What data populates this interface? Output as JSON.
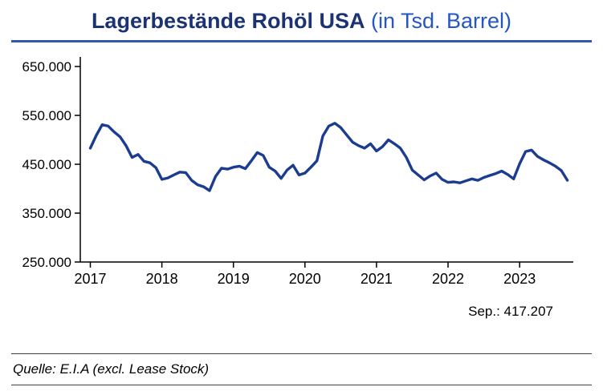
{
  "header": {
    "title_bold": "Lagerbestände Rohöl USA",
    "title_light": " (in Tsd. Barrel)",
    "title_bold_color": "#1B3274",
    "title_light_color": "#2457C5",
    "underline_color": "#2E5AA7"
  },
  "chart_data": {
    "type": "line",
    "title": "Lagerbestände Rohöl USA (in Tsd. Barrel)",
    "xlabel": "",
    "ylabel": "Tsd. Barrel",
    "ylim": [
      250000,
      650000
    ],
    "xlim": [
      2016.86,
      2023.75
    ],
    "grid": false,
    "legend": false,
    "y_ticks": [
      {
        "value": 250000,
        "label": "250.000"
      },
      {
        "value": 350000,
        "label": "350.000"
      },
      {
        "value": 450000,
        "label": "450.000"
      },
      {
        "value": 550000,
        "label": "550.000"
      },
      {
        "value": 650000,
        "label": "650.000"
      }
    ],
    "x_ticks": [
      {
        "value": 2017,
        "label": "2017"
      },
      {
        "value": 2018,
        "label": "2018"
      },
      {
        "value": 2019,
        "label": "2019"
      },
      {
        "value": 2020,
        "label": "2020"
      },
      {
        "value": 2021,
        "label": "2021"
      },
      {
        "value": 2022,
        "label": "2022"
      },
      {
        "value": 2023,
        "label": "2023"
      }
    ],
    "series": [
      {
        "name": "Lagerbestände Rohöl USA",
        "color": "#1B3C8F",
        "frequency": "monthly",
        "x_start_year": 2017,
        "values": [
          483000,
          509000,
          531000,
          528000,
          516000,
          506000,
          488000,
          464000,
          470000,
          456000,
          453000,
          443000,
          419000,
          422000,
          428000,
          434000,
          433000,
          417000,
          408000,
          404000,
          396000,
          425000,
          442000,
          440000,
          444000,
          446000,
          441000,
          457000,
          474000,
          468000,
          444000,
          436000,
          421000,
          438000,
          448000,
          428000,
          432000,
          444000,
          457000,
          508000,
          528000,
          534000,
          525000,
          510000,
          495000,
          488000,
          483000,
          492000,
          477000,
          486000,
          500000,
          492000,
          483000,
          464000,
          438000,
          428000,
          418000,
          426000,
          432000,
          419000,
          413000,
          414000,
          412000,
          416000,
          420000,
          417000,
          423000,
          427000,
          431000,
          436000,
          429000,
          420000,
          451000,
          476000,
          479000,
          466000,
          459000,
          453000,
          446000,
          437000,
          417207
        ]
      }
    ],
    "annotation": {
      "label": "Sep.: 417.207",
      "value": 417207,
      "period": "Sep."
    }
  },
  "footer": {
    "source": "Quelle: E.I.A (excl. Lease Stock)"
  }
}
